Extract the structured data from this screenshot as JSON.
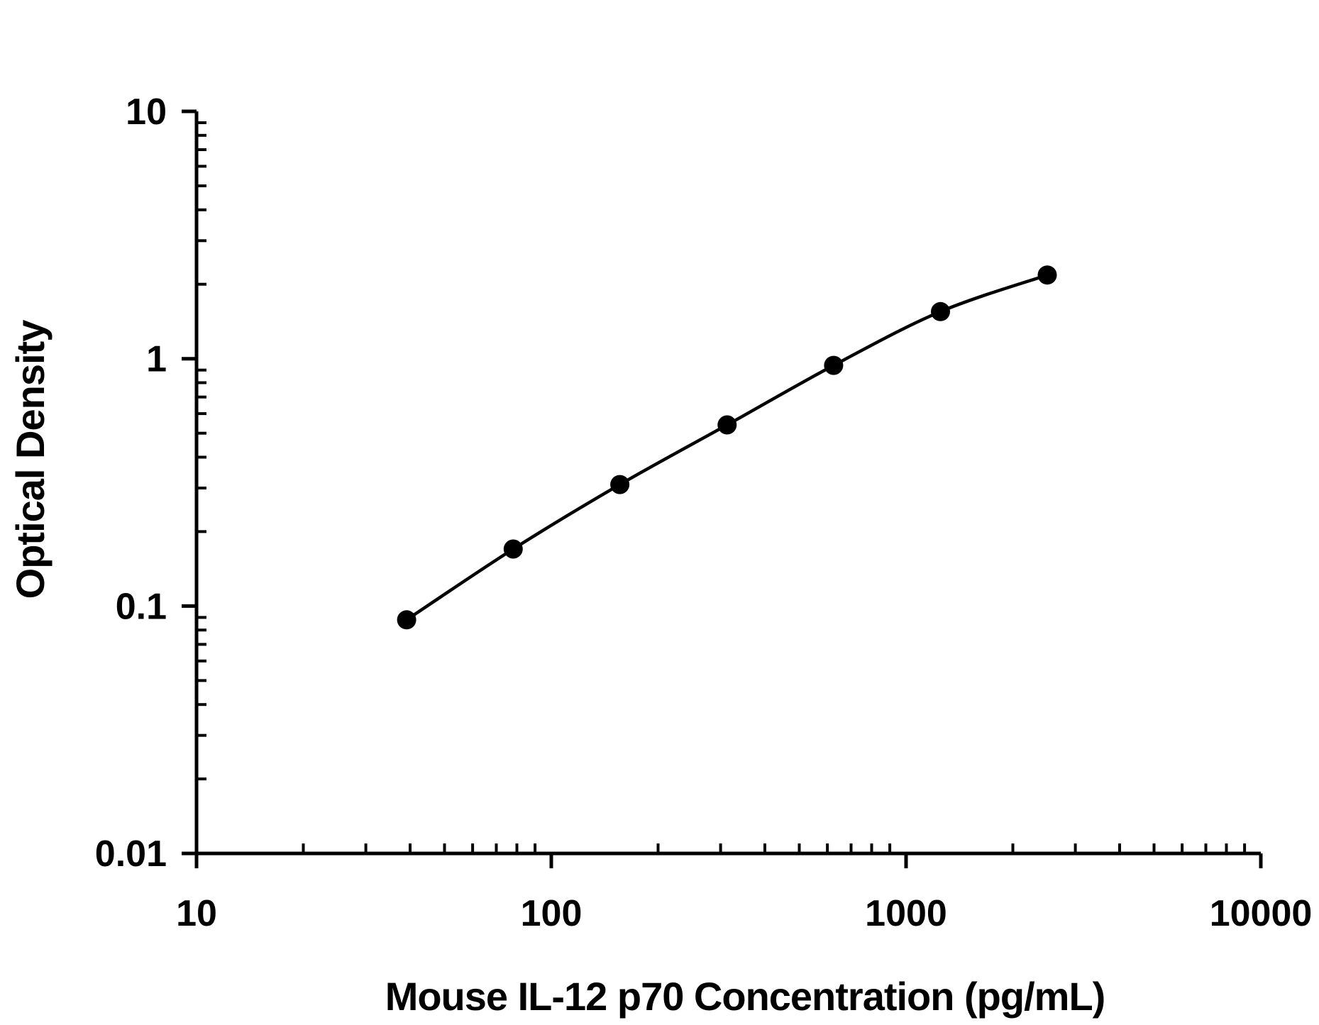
{
  "figure": {
    "background": "#ffffff",
    "ink_color": "#000000"
  },
  "chart_data": {
    "type": "scatter",
    "subtype": "line-with-markers",
    "title": "",
    "xlabel": "Mouse IL-12 p70 Concentration (pg/mL)",
    "ylabel": "Optical Density",
    "x_scale": "log",
    "y_scale": "log",
    "xlim": [
      10,
      10000
    ],
    "ylim": [
      0.01,
      10
    ],
    "x_major_ticks": [
      10,
      100,
      1000,
      10000
    ],
    "x_major_tick_labels": [
      "10",
      "100",
      "1000",
      "10000"
    ],
    "y_major_ticks": [
      0.01,
      0.1,
      1,
      10
    ],
    "y_major_tick_labels": [
      "0.01",
      "0.1",
      "1",
      "10"
    ],
    "minor_ticks": "log-subdivisions-2-to-9",
    "grid": false,
    "legend": false,
    "series": [
      {
        "name": "standard-curve",
        "marker": "filled-circle",
        "color": "#000000",
        "x": [
          39.1,
          78.1,
          156,
          313,
          625,
          1250,
          2500
        ],
        "y": [
          0.088,
          0.17,
          0.31,
          0.54,
          0.94,
          1.55,
          2.18
        ]
      }
    ]
  }
}
